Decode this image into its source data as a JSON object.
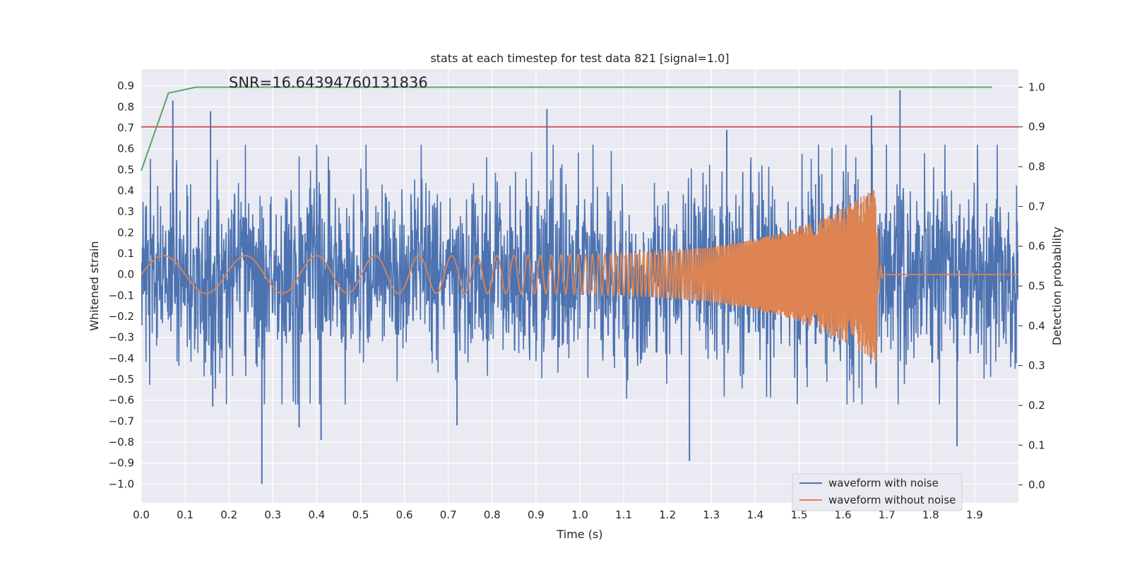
{
  "chart_data": {
    "type": "line",
    "title": "stats at each timestep for test data 821 [signal=1.0]",
    "xlabel": "Time (s)",
    "ylabel": "Whitened strain",
    "y2label": "Detection probability",
    "xlim": [
      0.0,
      2.0
    ],
    "ylim": [
      -1.09,
      0.98
    ],
    "y2lim": [
      -0.045,
      1.045
    ],
    "xticks": [
      "0.0",
      "0.1",
      "0.2",
      "0.3",
      "0.4",
      "0.5",
      "0.6",
      "0.7",
      "0.8",
      "0.9",
      "1.0",
      "1.1",
      "1.2",
      "1.3",
      "1.4",
      "1.5",
      "1.6",
      "1.7",
      "1.8",
      "1.9"
    ],
    "yticks": [
      "0.9",
      "0.8",
      "0.7",
      "0.6",
      "0.5",
      "0.4",
      "0.3",
      "0.2",
      "0.1",
      "0.0",
      "−0.1",
      "−0.2",
      "−0.3",
      "−0.4",
      "−0.5",
      "−0.6",
      "−0.7",
      "−0.8",
      "−0.9",
      "−1.0"
    ],
    "y2ticks": [
      "1.0",
      "0.9",
      "0.8",
      "0.7",
      "0.6",
      "0.5",
      "0.4",
      "0.3",
      "0.2",
      "0.1",
      "0.0"
    ],
    "annotation": "SNR=16.64394760131836",
    "legend": {
      "position": "lower-right",
      "entries": [
        "waveform with noise",
        "waveform without noise"
      ]
    },
    "grid": true,
    "colors": {
      "noise": "#4c72b0",
      "clean": "#dd8452",
      "probability": "#55a868",
      "threshold": "#c44e52",
      "background": "#eaeaf2"
    },
    "series": [
      {
        "name": "waveform with noise",
        "axis": "left",
        "description_of_shape": "dense noisy strain, roughly uniform envelope around ±0.35 with extremes",
        "extremes": [
          {
            "x": 0.072,
            "y": 0.83
          },
          {
            "x": 0.158,
            "y": 0.78
          },
          {
            "x": 0.163,
            "y": -0.63
          },
          {
            "x": 0.275,
            "y": -1.0
          },
          {
            "x": 0.36,
            "y": -0.73
          },
          {
            "x": 0.41,
            "y": -0.79
          },
          {
            "x": 0.72,
            "y": -0.72
          },
          {
            "x": 0.925,
            "y": 0.79
          },
          {
            "x": 1.25,
            "y": -0.89
          },
          {
            "x": 1.335,
            "y": 0.69
          },
          {
            "x": 1.665,
            "y": 0.76
          },
          {
            "x": 1.73,
            "y": 0.88
          },
          {
            "x": 1.86,
            "y": -0.82
          }
        ],
        "noise_amplitude": 0.3
      },
      {
        "name": "waveform without noise",
        "axis": "left",
        "description_of_shape": "chirp signal with growing frequency and amplitude, merger near 1.67 s then flat",
        "chirp": {
          "t_start": 0.0,
          "t_merger": 1.675,
          "t_end": 2.0,
          "amp_start": 0.09,
          "amp_peak": 0.42,
          "freq_start": 8,
          "freq_end": 130
        }
      },
      {
        "name": "detection probability",
        "axis": "right",
        "x": [
          0.0,
          0.062,
          0.125,
          1.94
        ],
        "y": [
          0.79,
          0.985,
          1.0,
          1.0
        ]
      },
      {
        "name": "threshold",
        "axis": "right",
        "x": [
          0.0,
          2.0
        ],
        "y": [
          0.9,
          0.9
        ]
      }
    ]
  }
}
